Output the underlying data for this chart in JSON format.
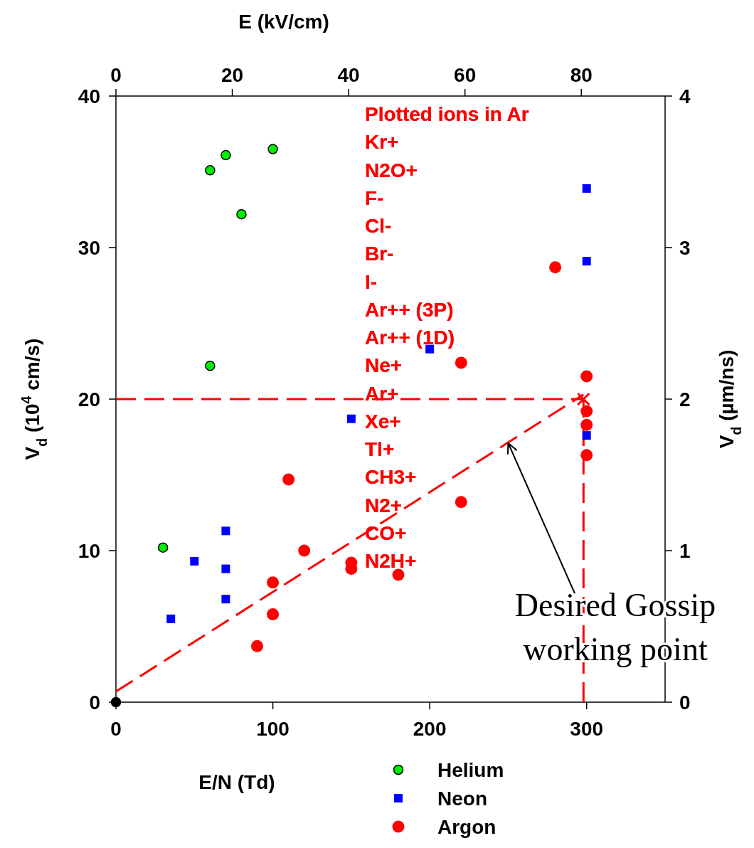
{
  "chart_data": {
    "type": "scatter",
    "xlabel": "E/N (Td)",
    "ylabel": "V$_{d}$ (10$^{4}$ cm/s)",
    "x2label": "E (kV/cm)",
    "y2label": "V$_{d}$ (µm/ns)",
    "xlim": [
      0,
      350
    ],
    "xticks": [
      0,
      100,
      200,
      300
    ],
    "x2lim": [
      0,
      94.4
    ],
    "x2ticks": [
      0,
      20,
      40,
      60,
      80
    ],
    "ylim": [
      0,
      40
    ],
    "yticks": [
      0,
      10,
      20,
      30,
      40
    ],
    "y2lim": [
      0,
      4
    ],
    "y2ticks": [
      0,
      1,
      2,
      3,
      4
    ],
    "grid": false,
    "legend": "bottom",
    "series": [
      {
        "name": "Helium",
        "marker": "circle",
        "color": "#00ee00",
        "x": [
          60,
          70,
          100,
          80,
          60,
          30
        ],
        "values": [
          35.1,
          36.1,
          36.5,
          32.2,
          22.2,
          10.2
        ]
      },
      {
        "name": "Neon",
        "marker": "square",
        "color": "#0000ff",
        "x": [
          35,
          50,
          70,
          70,
          70,
          150,
          200,
          300,
          300,
          300
        ],
        "values": [
          5.5,
          9.3,
          11.3,
          8.8,
          6.8,
          18.7,
          23.3,
          33.9,
          29.1,
          17.6
        ]
      },
      {
        "name": "Argon",
        "marker": "circle",
        "color": "#ff0000",
        "x": [
          110,
          120,
          100,
          100,
          90,
          150,
          150,
          180,
          220,
          220,
          280,
          300,
          300,
          300,
          300
        ],
        "values": [
          14.7,
          10.0,
          7.9,
          5.8,
          3.7,
          9.2,
          8.8,
          8.4,
          22.4,
          13.2,
          28.7,
          21.5,
          19.2,
          18.3,
          16.3
        ]
      },
      {
        "marker": "circle",
        "color": "#000000",
        "x": [
          0
        ],
        "values": [
          0
        ]
      },
      {
        "type": "line",
        "line_style": "dashed",
        "marker": "none",
        "color": "#ff0000",
        "x": [
          0,
          298
        ],
        "values": [
          0.7,
          20.3
        ]
      },
      {
        "type": "line",
        "line_style": "dashed",
        "marker": "none",
        "color": "#ff0000",
        "x": [
          0,
          298
        ],
        "values": [
          20,
          20
        ]
      },
      {
        "type": "line",
        "line_style": "dashed",
        "marker": "none",
        "color": "#ff0000",
        "x": [
          298,
          298
        ],
        "values": [
          0,
          20
        ]
      },
      {
        "marker": "cross",
        "color": "#ff0000",
        "x": [
          298
        ],
        "values": [
          20
        ]
      }
    ],
    "annotations": [
      "Plotted ions in Ar",
      "Kr+",
      "N2O+",
      "F-",
      "Cl-",
      "Br-",
      "I-",
      "Ar++ (3P)",
      "Ar++ (1D)",
      "Ne+",
      "Ar+",
      "Xe+",
      "Tl+",
      "CH3+",
      "N2+",
      "CO+",
      "N2H+",
      {
        "text": "Desired Gossip working point",
        "x": 250,
        "y": 17.1
      }
    ]
  }
}
